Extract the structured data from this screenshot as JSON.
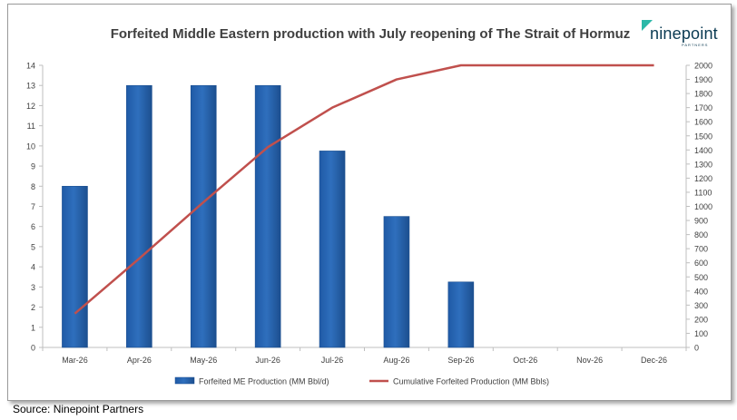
{
  "source": "Source: Ninepoint Partners",
  "logo": {
    "wordmark": "ninepoint",
    "tagline": "PARTNERS",
    "icon": "ninepoint-logo-icon",
    "accent": "#2bb8a8"
  },
  "colors": {
    "bar": "#2f6fbd",
    "bar_edge": "#1c4f8f",
    "line": "#c0504d"
  },
  "chart_data": {
    "type": "bar",
    "title": "Forfeited Middle Eastern production with July reopening of The Strait of Hormuz",
    "categories": [
      "Mar-26",
      "Apr-26",
      "May-26",
      "Jun-26",
      "Jul-26",
      "Aug-26",
      "Sep-26",
      "Oct-26",
      "Nov-26",
      "Dec-26"
    ],
    "series": [
      {
        "name": "Forfeited ME Production (MM Bbl/d)",
        "type": "bar",
        "axis": "left",
        "values": [
          8,
          13,
          13,
          13,
          9.75,
          6.5,
          3.25,
          0,
          0,
          0
        ]
      },
      {
        "name": "Cumulative Forfeited Production (MM Bbls)",
        "type": "line",
        "axis": "right",
        "values": [
          240,
          630,
          1030,
          1420,
          1700,
          1900,
          2000,
          2000,
          2000,
          2000
        ]
      }
    ],
    "ylim": [
      0,
      14
    ],
    "yticks": [
      "0",
      "1",
      "2",
      "3",
      "4",
      "5",
      "6",
      "7",
      "8",
      "9",
      "10",
      "11",
      "12",
      "13",
      "14"
    ],
    "y2lim": [
      0,
      2000
    ],
    "y2ticks": [
      "0",
      "100",
      "200",
      "300",
      "400",
      "500",
      "600",
      "700",
      "800",
      "900",
      "1000",
      "1100",
      "1200",
      "1300",
      "1400",
      "1500",
      "1600",
      "1700",
      "1800",
      "1900",
      "2000"
    ],
    "legend_position": "bottom",
    "grid": false
  }
}
